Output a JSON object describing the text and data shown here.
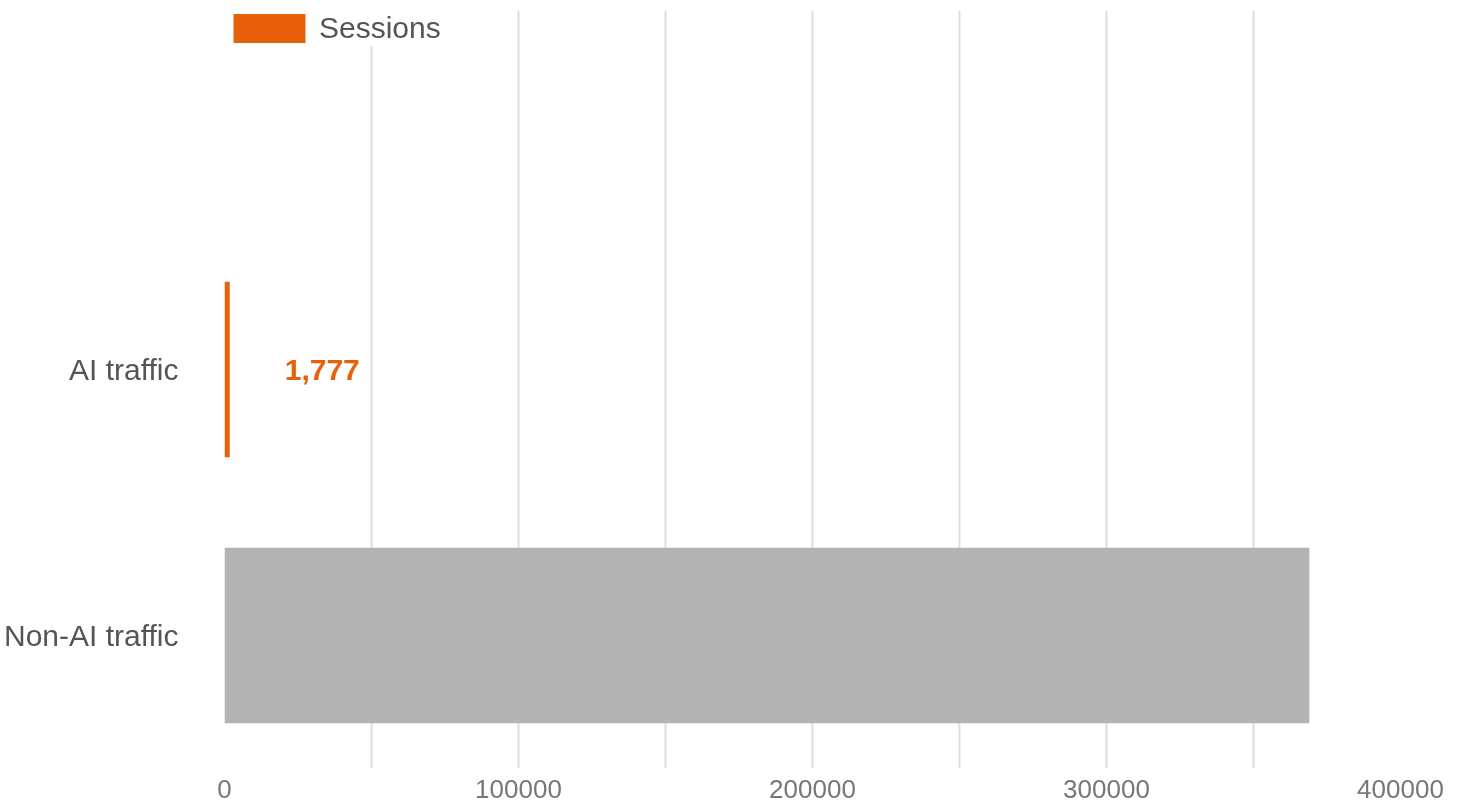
{
  "chart_data": {
    "type": "bar",
    "orientation": "horizontal",
    "categories": [
      "AI traffic",
      "Non-AI traffic"
    ],
    "series": [
      {
        "name": "Sessions",
        "color": "#e8610a",
        "colors": [
          "#e8610a",
          "#b3b3b3"
        ],
        "values": [
          1777,
          369000
        ],
        "value_labels": [
          "1,777",
          null
        ]
      }
    ],
    "xlim": [
      0,
      400000
    ],
    "xticks": [
      0,
      {
        "value": 50000,
        "label": null
      },
      100000,
      {
        "value": 150000,
        "label": null
      },
      200000,
      {
        "value": 250000,
        "label": null
      },
      300000,
      {
        "value": 350000,
        "label": null
      },
      400000
    ],
    "legend": "top left",
    "grid": "x"
  }
}
